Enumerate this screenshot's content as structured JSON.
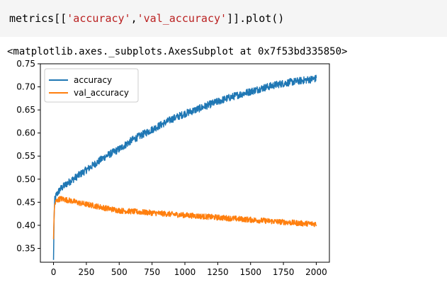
{
  "input": {
    "code_prefix": "metrics[[",
    "code_str1": "'accuracy'",
    "code_comma": ",",
    "code_str2": "'val_accuracy'",
    "code_suffix": "]].plot()"
  },
  "output": {
    "repr": "<matplotlib.axes._subplots.AxesSubplot at 0x7f53bd335850>"
  },
  "colors": {
    "input_bg": "#f5f5f5",
    "string": "#ba2121",
    "accuracy": "#1f77b4",
    "val_accuracy": "#ff7f0e"
  },
  "chart_data": {
    "type": "line",
    "xlim": [
      -100,
      2100
    ],
    "ylim": [
      0.32,
      0.75
    ],
    "xticks": [
      0,
      250,
      500,
      750,
      1000,
      1250,
      1500,
      1750,
      2000
    ],
    "yticks": [
      0.35,
      0.4,
      0.45,
      0.5,
      0.55,
      0.6,
      0.65,
      0.7,
      0.75
    ],
    "xtick_labels": [
      "0",
      "250",
      "500",
      "750",
      "1000",
      "1250",
      "1500",
      "1750",
      "2000"
    ],
    "ytick_labels": [
      "0.35",
      "0.40",
      "0.45",
      "0.50",
      "0.55",
      "0.60",
      "0.65",
      "0.70",
      "0.75"
    ],
    "legend_position": "upper-left",
    "series": [
      {
        "name": "accuracy",
        "x": [
          0,
          5,
          10,
          20,
          50,
          100,
          150,
          200,
          300,
          400,
          500,
          600,
          700,
          800,
          900,
          1000,
          1100,
          1200,
          1300,
          1400,
          1500,
          1600,
          1700,
          1800,
          1900,
          2000
        ],
        "values": [
          0.325,
          0.43,
          0.455,
          0.465,
          0.478,
          0.49,
          0.5,
          0.51,
          0.53,
          0.55,
          0.565,
          0.585,
          0.6,
          0.615,
          0.63,
          0.642,
          0.652,
          0.663,
          0.673,
          0.682,
          0.69,
          0.698,
          0.705,
          0.71,
          0.714,
          0.718
        ],
        "noise": 0.008
      },
      {
        "name": "val_accuracy",
        "x": [
          0,
          5,
          10,
          20,
          50,
          100,
          150,
          200,
          300,
          400,
          500,
          600,
          700,
          800,
          900,
          1000,
          1100,
          1200,
          1300,
          1400,
          1500,
          1600,
          1700,
          1800,
          1900,
          2000
        ],
        "values": [
          0.37,
          0.43,
          0.445,
          0.452,
          0.458,
          0.455,
          0.452,
          0.448,
          0.443,
          0.437,
          0.432,
          0.43,
          0.428,
          0.426,
          0.424,
          0.422,
          0.42,
          0.418,
          0.416,
          0.414,
          0.412,
          0.41,
          0.408,
          0.406,
          0.404,
          0.403
        ],
        "noise": 0.006
      }
    ]
  }
}
